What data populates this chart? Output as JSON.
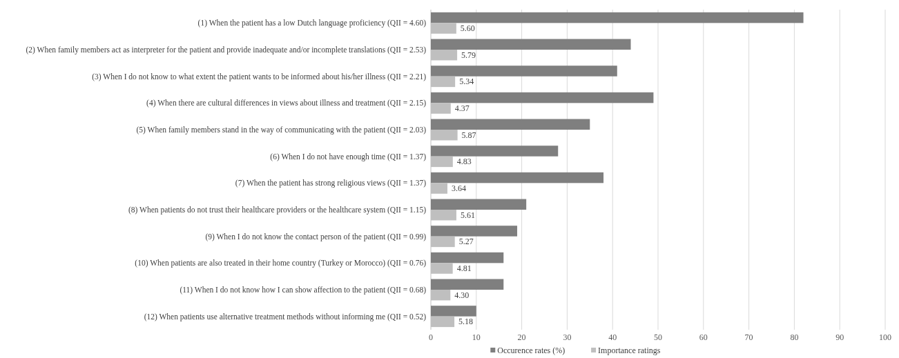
{
  "chart_data": {
    "type": "bar",
    "orientation": "horizontal",
    "categories": [
      "(1) When the patient has a low Dutch language proficiency (QII = 4.60)",
      "(2) When family members act as interpreter for the patient and provide inadequate and/or incomplete translations (QII = 2.53)",
      "(3) When I do not know to what extent the patient wants to be informed about his/her illness (QII = 2.21)",
      "(4) When there are cultural differences in views about illness and treatment (QII = 2.15)",
      "(5) When family members stand in the way of communicating with the patient (QII = 2.03)",
      "(6) When I do not have enough time (QII = 1.37)",
      "(7) When the patient has strong religious views (QII = 1.37)",
      "(8) When patients do not trust their healthcare providers or the healthcare system (QII = 1.15)",
      "(9) When I do not know the contact person of the patient (QII = 0.99)",
      "(10) When patients are also treated in their home country (Turkey or Morocco) (QII = 0.76)",
      "(11) When I do not know how I can show affection to the patient (QII = 0.68)",
      "(12) When patients use alternative treatment methods without informing me (QII = 0.52)"
    ],
    "series": [
      {
        "name": "Occurence rates (%)",
        "color": "#7f7f7f",
        "values": [
          82,
          44,
          41,
          49,
          35,
          28,
          38,
          21,
          19,
          16,
          16,
          10
        ]
      },
      {
        "name": "Importance ratings",
        "color": "#bfbfbf",
        "values": [
          5.6,
          5.79,
          5.34,
          4.37,
          5.87,
          4.83,
          3.64,
          5.61,
          5.27,
          4.81,
          4.3,
          5.18
        ],
        "value_labels": [
          "5.60",
          "5.79",
          "5.34",
          "4.37",
          "5.87",
          "4.83",
          "3.64",
          "5.61",
          "5.27",
          "4.81",
          "4.30",
          "5.18"
        ]
      }
    ],
    "xlim": [
      0,
      100
    ],
    "xticks": [
      0,
      10,
      20,
      30,
      40,
      50,
      60,
      70,
      80,
      90,
      100
    ],
    "grid": "x",
    "legend": "bottom"
  }
}
